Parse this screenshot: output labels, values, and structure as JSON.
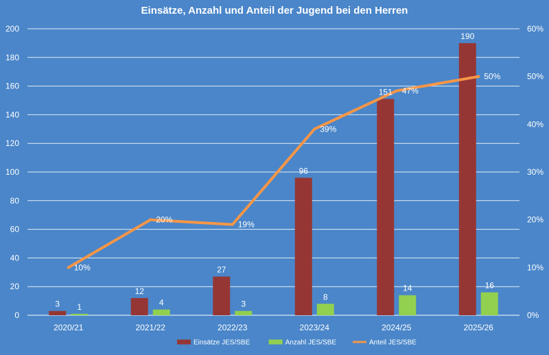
{
  "chart_data": {
    "type": "bar",
    "title": "Einsätze, Anzahl und Anteil der Jugend bei den Herren",
    "categories": [
      "2020/21",
      "2021/22",
      "2022/23",
      "2023/24",
      "2024/25",
      "2025/26"
    ],
    "series": [
      {
        "name": "Einsätze JES/SBE",
        "type": "bar",
        "axis": "left",
        "color": "#963634",
        "values": [
          3,
          12,
          27,
          96,
          151,
          190
        ],
        "labels": [
          "3",
          "12",
          "27",
          "96",
          "151",
          "190"
        ]
      },
      {
        "name": "Anzahl JES/SBE",
        "type": "bar",
        "axis": "left",
        "color": "#92d050",
        "values": [
          1,
          4,
          3,
          8,
          14,
          16
        ],
        "labels": [
          "1",
          "4",
          "3",
          "8",
          "14",
          "16"
        ]
      },
      {
        "name": "Anteil JES/SBE",
        "type": "line",
        "axis": "right",
        "color": "#f79646",
        "values": [
          0.1,
          0.2,
          0.19,
          0.39,
          0.47,
          0.5
        ],
        "labels": [
          "10%",
          "20%",
          "19%",
          "39%",
          "47%",
          "50%"
        ]
      }
    ],
    "y_left": {
      "min": 0,
      "max": 200,
      "ticks": [
        "0",
        "20",
        "40",
        "60",
        "80",
        "100",
        "120",
        "140",
        "160",
        "180",
        "200"
      ]
    },
    "y_right": {
      "min": 0,
      "max": 0.6,
      "ticks": [
        "0%",
        "10%",
        "20%",
        "30%",
        "40%",
        "50%",
        "60%"
      ]
    },
    "grid": true,
    "legend": "bottom",
    "background": "#4a86c9",
    "gridline_color": "#ffffff"
  }
}
